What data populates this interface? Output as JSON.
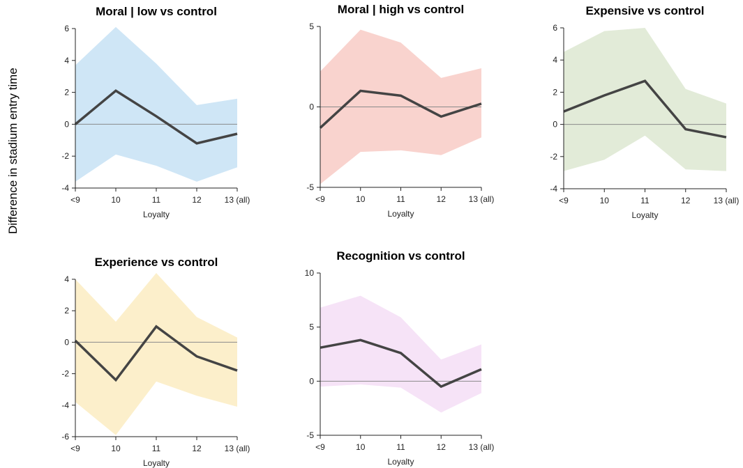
{
  "figure": {
    "ylabel": "Difference in stadium entry time"
  },
  "chart_data": [
    {
      "type": "area",
      "title": "Moral | low vs control",
      "xlabel": "Loyalty",
      "ylabel": "",
      "categories": [
        "<9",
        "10",
        "11",
        "12",
        "13 (all)"
      ],
      "ylim": [
        -4,
        6
      ],
      "yticks": [
        "-4",
        "-2",
        "0",
        "2",
        "4",
        "6"
      ],
      "band_color": "#cfe6f6",
      "line_color": "#444444",
      "series": [
        {
          "values": [
            0.0,
            2.1,
            0.5,
            -1.2,
            -0.6
          ],
          "lower": [
            -3.6,
            -1.9,
            -2.6,
            -3.6,
            -2.7
          ],
          "upper": [
            3.7,
            6.1,
            3.8,
            1.2,
            1.6
          ]
        }
      ]
    },
    {
      "type": "area",
      "title": "Moral | high vs control",
      "xlabel": "Loyalty",
      "ylabel": "",
      "categories": [
        "<9",
        "10",
        "11",
        "12",
        "13 (all)"
      ],
      "ylim": [
        -5,
        5
      ],
      "yticks": [
        "-5",
        "0",
        "5"
      ],
      "band_color": "#f9d3ce",
      "line_color": "#444444",
      "series": [
        {
          "values": [
            -1.3,
            1.0,
            0.7,
            -0.6,
            0.2
          ],
          "lower": [
            -4.8,
            -2.8,
            -2.7,
            -3.0,
            -1.9
          ],
          "upper": [
            2.2,
            4.8,
            4.0,
            1.8,
            2.4
          ]
        }
      ]
    },
    {
      "type": "area",
      "title": "Expensive vs control",
      "xlabel": "Loyalty",
      "ylabel": "",
      "categories": [
        "<9",
        "10",
        "11",
        "12",
        "13 (all)"
      ],
      "ylim": [
        -4,
        6
      ],
      "yticks": [
        "-4",
        "-2",
        "0",
        "2",
        "4",
        "6"
      ],
      "band_color": "#e2ebd8",
      "line_color": "#444444",
      "series": [
        {
          "values": [
            0.8,
            1.8,
            2.7,
            -0.3,
            -0.8
          ],
          "lower": [
            -2.9,
            -2.2,
            -0.7,
            -2.8,
            -2.9
          ],
          "upper": [
            4.5,
            5.8,
            6.0,
            2.2,
            1.3
          ]
        }
      ]
    },
    {
      "type": "area",
      "title": "Experience vs control",
      "xlabel": "Loyalty",
      "ylabel": "",
      "categories": [
        "<9",
        "10",
        "11",
        "12",
        "13 (all)"
      ],
      "ylim": [
        -6,
        4
      ],
      "yticks": [
        "-6",
        "-4",
        "-2",
        "0",
        "2",
        "4"
      ],
      "band_color": "#fcefcb",
      "line_color": "#444444",
      "series": [
        {
          "values": [
            0.1,
            -2.4,
            1.0,
            -0.9,
            -1.8
          ],
          "lower": [
            -3.8,
            -5.9,
            -2.5,
            -3.4,
            -4.1
          ],
          "upper": [
            4.0,
            1.3,
            4.4,
            1.6,
            0.3
          ]
        }
      ]
    },
    {
      "type": "area",
      "title": "Recognition vs control",
      "xlabel": "Loyalty",
      "ylabel": "",
      "categories": [
        "<9",
        "10",
        "11",
        "12",
        "13 (all)"
      ],
      "ylim": [
        -5,
        10
      ],
      "yticks": [
        "-5",
        "0",
        "5",
        "10"
      ],
      "band_color": "#f6e3f7",
      "line_color": "#444444",
      "series": [
        {
          "values": [
            3.1,
            3.8,
            2.6,
            -0.5,
            1.1
          ],
          "lower": [
            -0.5,
            -0.3,
            -0.6,
            -2.9,
            -1.1
          ],
          "upper": [
            6.8,
            7.9,
            5.9,
            2.0,
            3.4
          ]
        }
      ]
    }
  ]
}
